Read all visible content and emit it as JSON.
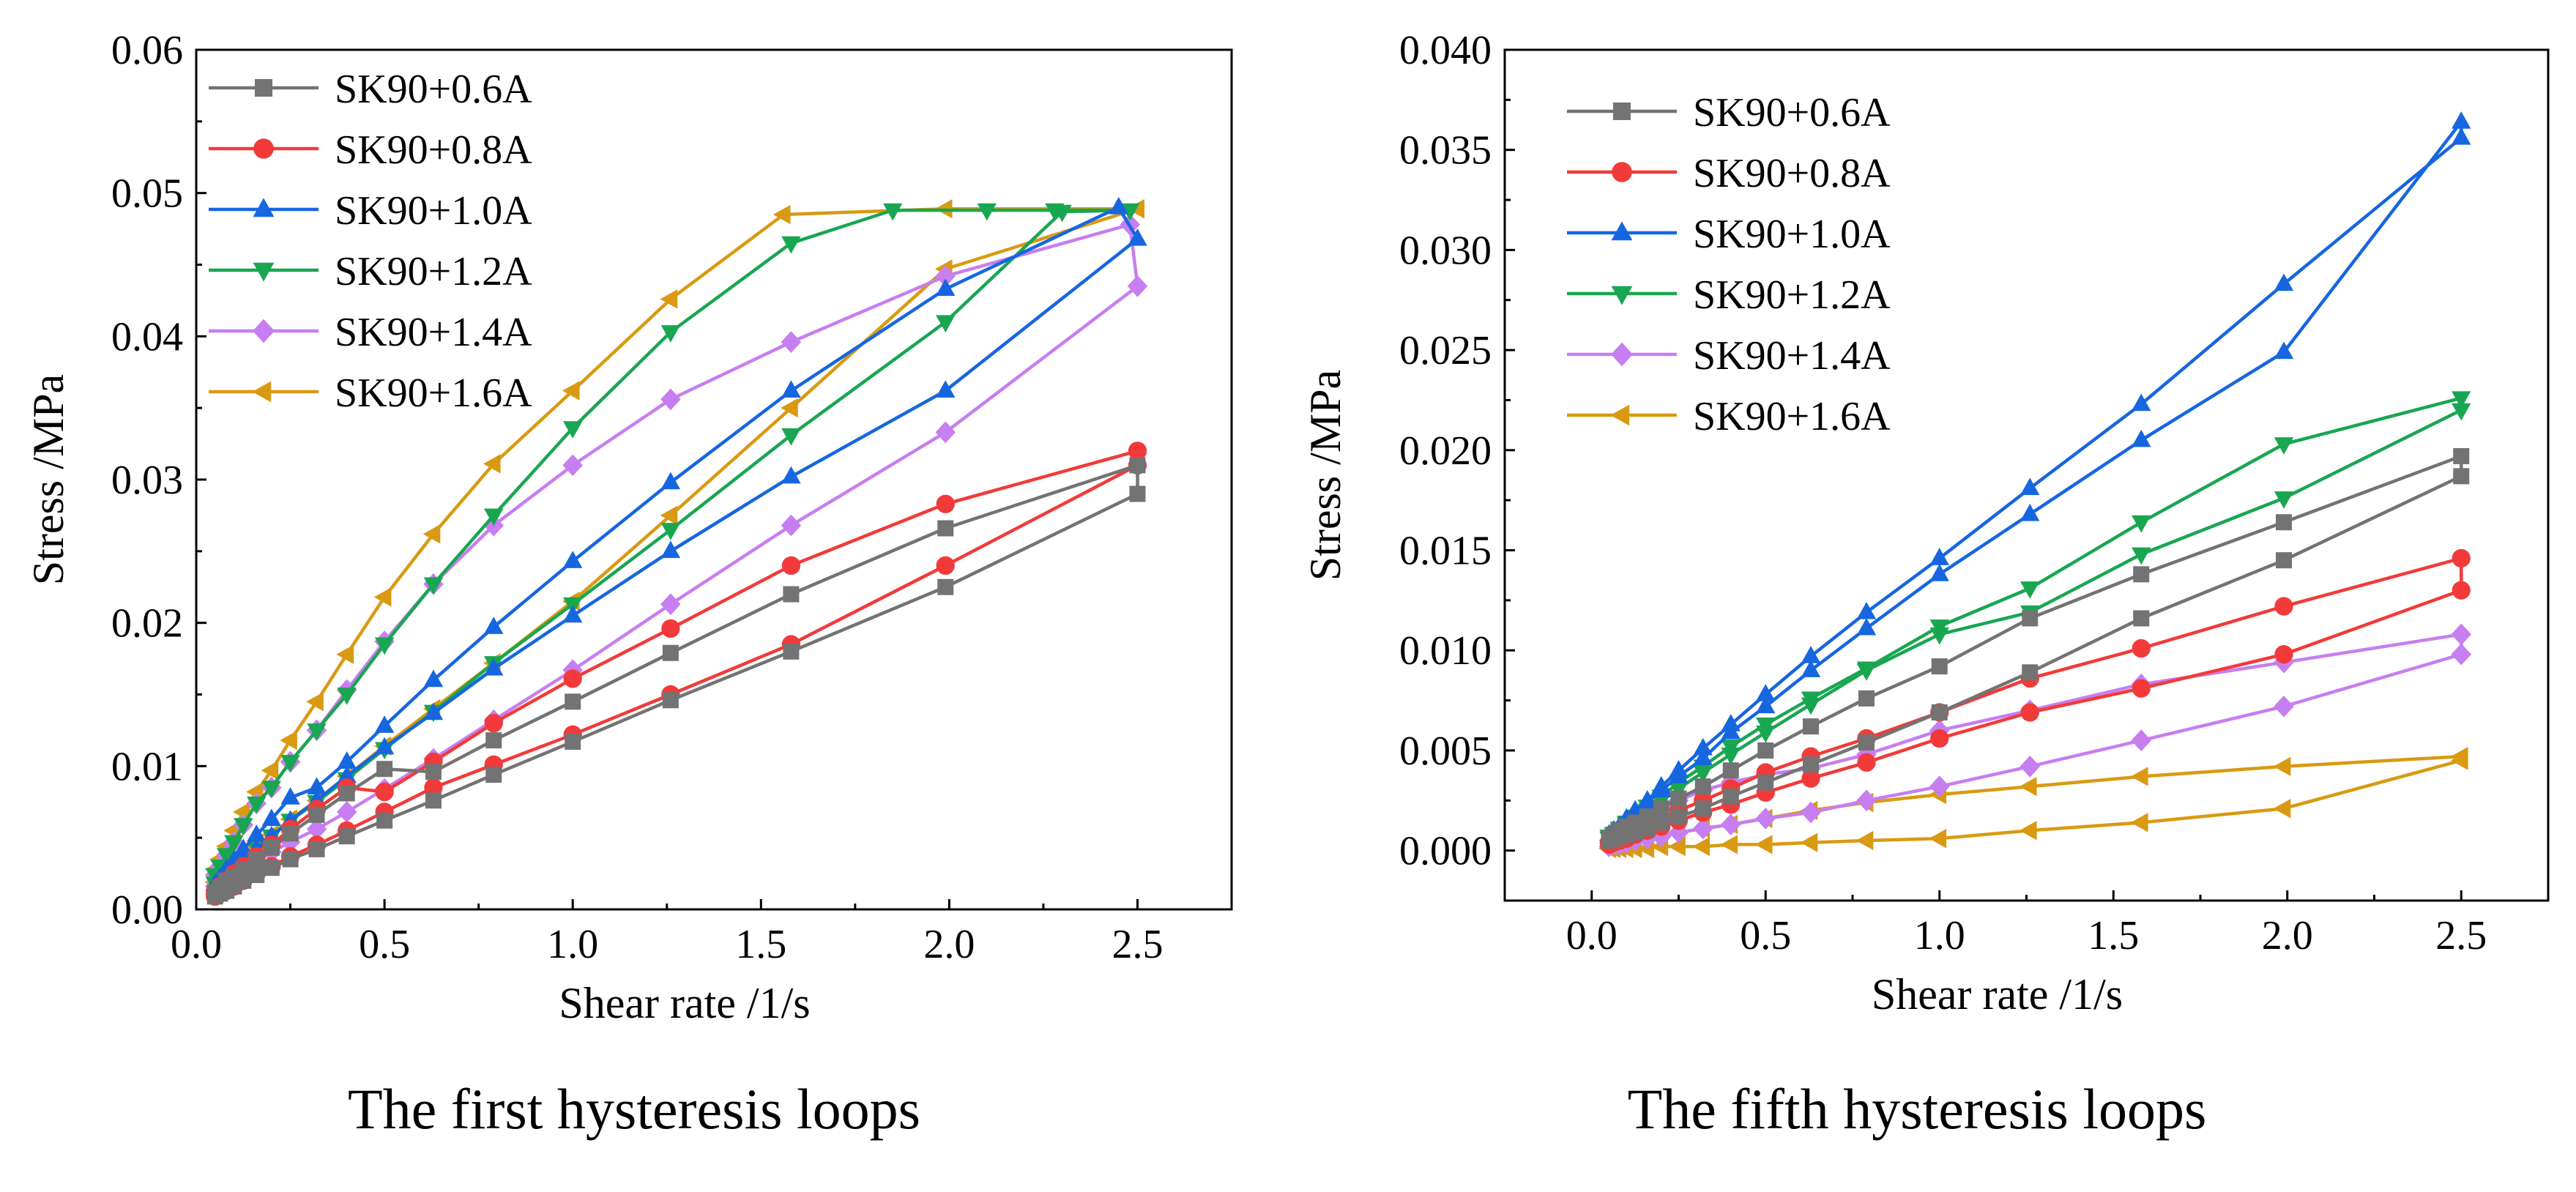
{
  "colors": {
    "SK90+0.6A": "#737373",
    "SK90+0.8A": "#f23a3a",
    "SK90+1.0A": "#1666e0",
    "SK90+1.2A": "#19a651",
    "SK90+1.4A": "#c77ef0",
    "SK90+1.6A": "#d99a12"
  },
  "chart_data": [
    {
      "type": "line",
      "title": "The first hysteresis loops",
      "xlabel": "Shear rate /1/s",
      "ylabel": "Stress /MPa",
      "xlim": [
        0.0,
        2.75
      ],
      "ylim": [
        0.0,
        0.06
      ],
      "xticks": [
        "0.0",
        "0.5",
        "1.0",
        "1.5",
        "2.0",
        "2.5"
      ],
      "yticks": [
        "0.00",
        "0.01",
        "0.02",
        "0.03",
        "0.04",
        "0.05",
        "0.06"
      ],
      "legend": "top-left",
      "series": [
        {
          "name": "SK90+0.6A",
          "marker": "square",
          "x": [
            0.05,
            0.063,
            0.08,
            0.1,
            0.125,
            0.16,
            0.2,
            0.25,
            0.32,
            0.4,
            0.5,
            0.63,
            0.79,
            1.0,
            1.26,
            1.58,
            1.99,
            2.5,
            2.5,
            1.99,
            1.58,
            1.26,
            1.0,
            0.79,
            0.63,
            0.5,
            0.4,
            0.32,
            0.25,
            0.2,
            0.16,
            0.125,
            0.1,
            0.08,
            0.063,
            0.05
          ],
          "y": [
            0.0012,
            0.0015,
            0.002,
            0.0023,
            0.0028,
            0.0035,
            0.0043,
            0.0053,
            0.0066,
            0.0081,
            0.0098,
            0.0096,
            0.0118,
            0.0145,
            0.0179,
            0.022,
            0.0266,
            0.031,
            0.029,
            0.0225,
            0.018,
            0.0146,
            0.0117,
            0.0094,
            0.0076,
            0.0062,
            0.0051,
            0.0042,
            0.0035,
            0.0029,
            0.0024,
            0.002,
            0.0016,
            0.0013,
            0.0011,
            0.0009
          ]
        },
        {
          "name": "SK90+0.8A",
          "marker": "circle",
          "x": [
            0.05,
            0.063,
            0.08,
            0.1,
            0.125,
            0.16,
            0.2,
            0.25,
            0.32,
            0.4,
            0.5,
            0.63,
            0.79,
            1.0,
            1.26,
            1.58,
            1.99,
            2.5,
            2.5,
            1.99,
            1.58,
            1.26,
            1.0,
            0.79,
            0.63,
            0.5,
            0.4,
            0.32,
            0.25,
            0.2,
            0.16,
            0.125,
            0.1,
            0.08,
            0.063,
            0.05
          ],
          "y": [
            0.0012,
            0.0016,
            0.002,
            0.0025,
            0.003,
            0.0037,
            0.0045,
            0.0056,
            0.007,
            0.0085,
            0.0082,
            0.0103,
            0.013,
            0.0161,
            0.0196,
            0.024,
            0.0283,
            0.032,
            0.031,
            0.024,
            0.0185,
            0.015,
            0.0122,
            0.0101,
            0.0085,
            0.0068,
            0.0055,
            0.0045,
            0.0037,
            0.003,
            0.0025,
            0.002,
            0.0016,
            0.0013,
            0.0011,
            0.0009
          ]
        },
        {
          "name": "SK90+1.0A",
          "marker": "triangle-up",
          "x": [
            0.05,
            0.063,
            0.08,
            0.1,
            0.125,
            0.16,
            0.2,
            0.25,
            0.32,
            0.4,
            0.5,
            0.63,
            0.79,
            1.0,
            1.26,
            1.58,
            1.99,
            2.45,
            2.5,
            1.99,
            1.58,
            1.26,
            1.0,
            0.79,
            0.63,
            0.5,
            0.4,
            0.32,
            0.25,
            0.2,
            0.16,
            0.125,
            0.1,
            0.08,
            0.063,
            0.05
          ],
          "y": [
            0.0018,
            0.0022,
            0.0028,
            0.0034,
            0.0042,
            0.0052,
            0.0063,
            0.0078,
            0.0085,
            0.0103,
            0.0128,
            0.016,
            0.0197,
            0.0243,
            0.0298,
            0.0362,
            0.0433,
            0.049,
            0.0468,
            0.0362,
            0.0302,
            0.025,
            0.0205,
            0.0168,
            0.0137,
            0.0113,
            0.0093,
            0.0076,
            0.0062,
            0.0051,
            0.0042,
            0.0034,
            0.0028,
            0.0023,
            0.0019,
            0.0015
          ]
        },
        {
          "name": "SK90+1.2A",
          "marker": "triangle-down",
          "x": [
            0.05,
            0.063,
            0.08,
            0.1,
            0.125,
            0.16,
            0.2,
            0.25,
            0.32,
            0.4,
            0.5,
            0.63,
            0.79,
            1.0,
            1.26,
            1.58,
            1.85,
            2.1,
            2.28,
            2.48,
            2.3,
            1.99,
            1.58,
            1.26,
            1.0,
            0.79,
            0.63,
            0.5,
            0.4,
            0.32,
            0.25,
            0.2,
            0.16,
            0.125,
            0.1,
            0.08,
            0.063,
            0.05
          ],
          "y": [
            0.0024,
            0.003,
            0.0038,
            0.0047,
            0.0059,
            0.0074,
            0.0085,
            0.0103,
            0.0125,
            0.015,
            0.0185,
            0.0227,
            0.0275,
            0.0336,
            0.0403,
            0.0465,
            0.0488,
            0.0488,
            0.0488,
            0.0488,
            0.0487,
            0.041,
            0.0331,
            0.0265,
            0.0213,
            0.0172,
            0.0138,
            0.0112,
            0.0091,
            0.0075,
            0.0062,
            0.0051,
            0.0043,
            0.0036,
            0.003,
            0.0025,
            0.0021,
            0.0018
          ]
        },
        {
          "name": "SK90+1.4A",
          "marker": "diamond",
          "x": [
            0.05,
            0.063,
            0.08,
            0.1,
            0.125,
            0.16,
            0.2,
            0.25,
            0.32,
            0.4,
            0.5,
            0.63,
            0.79,
            1.0,
            1.26,
            1.58,
            1.99,
            2.48,
            2.5,
            1.99,
            1.58,
            1.26,
            1.0,
            0.79,
            0.63,
            0.5,
            0.4,
            0.32,
            0.25,
            0.2,
            0.16,
            0.125,
            0.1,
            0.08,
            0.063,
            0.05
          ],
          "y": [
            0.0024,
            0.003,
            0.0038,
            0.0047,
            0.0059,
            0.0074,
            0.0085,
            0.0103,
            0.0125,
            0.0153,
            0.0187,
            0.0227,
            0.0268,
            0.031,
            0.0356,
            0.0396,
            0.0442,
            0.0478,
            0.0435,
            0.0333,
            0.0268,
            0.0213,
            0.0167,
            0.0132,
            0.0105,
            0.0084,
            0.0068,
            0.0056,
            0.0047,
            0.004,
            0.0034,
            0.0029,
            0.0025,
            0.0021,
            0.0018,
            0.0016
          ]
        },
        {
          "name": "SK90+1.6A",
          "marker": "triangle-left",
          "x": [
            0.05,
            0.063,
            0.08,
            0.1,
            0.125,
            0.16,
            0.2,
            0.25,
            0.32,
            0.4,
            0.5,
            0.63,
            0.79,
            1.0,
            1.26,
            1.56,
            1.99,
            2.5,
            2.5,
            1.99,
            1.58,
            1.26,
            1.0,
            0.79,
            0.63,
            0.5,
            0.4,
            0.32,
            0.25,
            0.2,
            0.16,
            0.125,
            0.1,
            0.08,
            0.063,
            0.05
          ],
          "y": [
            0.0028,
            0.0035,
            0.0044,
            0.0055,
            0.0068,
            0.0082,
            0.0097,
            0.0118,
            0.0145,
            0.0178,
            0.0218,
            0.0262,
            0.0311,
            0.0362,
            0.0426,
            0.0485,
            0.0489,
            0.0489,
            0.0489,
            0.0447,
            0.035,
            0.0275,
            0.0215,
            0.0172,
            0.014,
            0.0114,
            0.0093,
            0.0076,
            0.0063,
            0.0052,
            0.0044,
            0.0037,
            0.0031,
            0.0026,
            0.0022,
            0.0019
          ]
        }
      ]
    },
    {
      "type": "line",
      "title": "The fifth hysteresis loops",
      "xlabel": "Shear rate /1/s",
      "ylabel": "Stress /MPa",
      "xlim": [
        -0.25,
        2.75
      ],
      "ylim": [
        -0.0025,
        0.04
      ],
      "xticks": [
        "0.0",
        "0.5",
        "1.0",
        "1.5",
        "2.0",
        "2.5"
      ],
      "yticks": [
        "0.000",
        "0.005",
        "0.010",
        "0.015",
        "0.020",
        "0.025",
        "0.030",
        "0.035",
        "0.040"
      ],
      "legend": "top-left",
      "series": [
        {
          "name": "SK90+0.6A",
          "marker": "square",
          "x": [
            0.05,
            0.063,
            0.08,
            0.1,
            0.125,
            0.16,
            0.2,
            0.25,
            0.32,
            0.4,
            0.5,
            0.63,
            0.79,
            1.0,
            1.26,
            1.58,
            1.99,
            2.5,
            2.5,
            1.99,
            1.58,
            1.26,
            1.0,
            0.79,
            0.63,
            0.5,
            0.4,
            0.32,
            0.25,
            0.2,
            0.16,
            0.125,
            0.1,
            0.08,
            0.063,
            0.05
          ],
          "y": [
            0.0006,
            0.0008,
            0.001,
            0.0012,
            0.0014,
            0.0017,
            0.0021,
            0.0026,
            0.0032,
            0.004,
            0.005,
            0.0062,
            0.0076,
            0.0092,
            0.0116,
            0.0138,
            0.0164,
            0.0197,
            0.0187,
            0.0145,
            0.0116,
            0.0089,
            0.0069,
            0.0054,
            0.0043,
            0.0034,
            0.0027,
            0.0021,
            0.0017,
            0.0014,
            0.0011,
            0.0009,
            0.0008,
            0.0007,
            0.0006,
            0.0005
          ]
        },
        {
          "name": "SK90+0.8A",
          "marker": "circle",
          "x": [
            0.05,
            0.063,
            0.08,
            0.1,
            0.125,
            0.16,
            0.2,
            0.25,
            0.32,
            0.4,
            0.5,
            0.63,
            0.79,
            1.0,
            1.26,
            1.58,
            1.99,
            2.5,
            2.5,
            1.99,
            1.58,
            1.26,
            1.0,
            0.79,
            0.63,
            0.5,
            0.4,
            0.32,
            0.25,
            0.2,
            0.16,
            0.125,
            0.1,
            0.08,
            0.063,
            0.05
          ],
          "y": [
            0.0004,
            0.0005,
            0.0006,
            0.0008,
            0.001,
            0.0013,
            0.0016,
            0.002,
            0.0025,
            0.0031,
            0.0039,
            0.0047,
            0.0056,
            0.0069,
            0.0086,
            0.0101,
            0.0122,
            0.0146,
            0.013,
            0.0098,
            0.0081,
            0.0069,
            0.0056,
            0.0044,
            0.0036,
            0.0029,
            0.0023,
            0.0019,
            0.0015,
            0.0012,
            0.001,
            0.0008,
            0.0006,
            0.0005,
            0.0004,
            0.0003
          ]
        },
        {
          "name": "SK90+1.0A",
          "marker": "triangle-up",
          "x": [
            0.05,
            0.063,
            0.08,
            0.1,
            0.125,
            0.16,
            0.2,
            0.25,
            0.32,
            0.4,
            0.5,
            0.63,
            0.79,
            1.0,
            1.26,
            1.58,
            1.99,
            2.5,
            2.5,
            1.99,
            1.58,
            1.26,
            1.0,
            0.79,
            0.63,
            0.5,
            0.4,
            0.32,
            0.25,
            0.2,
            0.16,
            0.125,
            0.1,
            0.08,
            0.063,
            0.05
          ],
          "y": [
            0.0007,
            0.0009,
            0.0012,
            0.0015,
            0.0019,
            0.0024,
            0.003,
            0.0037,
            0.0046,
            0.0059,
            0.0072,
            0.009,
            0.0111,
            0.0138,
            0.0168,
            0.0205,
            0.0249,
            0.0364,
            0.0356,
            0.0283,
            0.0223,
            0.0181,
            0.0146,
            0.0119,
            0.0097,
            0.0078,
            0.0063,
            0.0051,
            0.004,
            0.0032,
            0.0025,
            0.002,
            0.0016,
            0.0012,
            0.001,
            0.0008
          ]
        },
        {
          "name": "SK90+1.2A",
          "marker": "triangle-down",
          "x": [
            0.05,
            0.063,
            0.08,
            0.1,
            0.125,
            0.16,
            0.2,
            0.25,
            0.32,
            0.4,
            0.5,
            0.63,
            0.79,
            1.0,
            1.26,
            1.58,
            1.99,
            2.5,
            2.5,
            1.99,
            1.58,
            1.26,
            1.0,
            0.79,
            0.63,
            0.5,
            0.4,
            0.32,
            0.25,
            0.2,
            0.16,
            0.125,
            0.1,
            0.08,
            0.063,
            0.05
          ],
          "y": [
            0.0006,
            0.0008,
            0.0011,
            0.0014,
            0.0017,
            0.0022,
            0.0027,
            0.0034,
            0.0042,
            0.0052,
            0.0063,
            0.0076,
            0.0091,
            0.0112,
            0.0131,
            0.0164,
            0.0203,
            0.0226,
            0.022,
            0.0176,
            0.0148,
            0.0119,
            0.0108,
            0.009,
            0.0073,
            0.0059,
            0.0048,
            0.0039,
            0.0031,
            0.0025,
            0.002,
            0.0016,
            0.0013,
            0.001,
            0.0008,
            0.0007
          ]
        },
        {
          "name": "SK90+1.4A",
          "marker": "diamond",
          "x": [
            0.05,
            0.063,
            0.08,
            0.1,
            0.125,
            0.16,
            0.2,
            0.25,
            0.32,
            0.4,
            0.5,
            0.63,
            0.79,
            1.0,
            1.26,
            1.58,
            1.99,
            2.5,
            2.5,
            1.99,
            1.58,
            1.26,
            1.0,
            0.79,
            0.63,
            0.5,
            0.4,
            0.32,
            0.25,
            0.2,
            0.16,
            0.125,
            0.1,
            0.08,
            0.063,
            0.05
          ],
          "y": [
            0.0005,
            0.0007,
            0.0009,
            0.0011,
            0.0014,
            0.0017,
            0.0021,
            0.0025,
            0.003,
            0.0034,
            0.0038,
            0.0041,
            0.0048,
            0.006,
            0.007,
            0.0083,
            0.0094,
            0.0108,
            0.0098,
            0.0072,
            0.0055,
            0.0042,
            0.0032,
            0.0025,
            0.0019,
            0.0016,
            0.0013,
            0.0011,
            0.0009,
            0.0007,
            0.0006,
            0.0005,
            0.0004,
            0.0003,
            0.0003,
            0.0002
          ]
        },
        {
          "name": "SK90+1.6A",
          "marker": "triangle-left",
          "x": [
            0.05,
            0.063,
            0.08,
            0.1,
            0.125,
            0.16,
            0.2,
            0.25,
            0.32,
            0.4,
            0.5,
            0.63,
            0.79,
            1.0,
            1.26,
            1.58,
            1.99,
            2.5,
            2.5,
            1.99,
            1.58,
            1.26,
            1.0,
            0.79,
            0.63,
            0.5,
            0.4,
            0.32,
            0.25,
            0.2,
            0.16,
            0.125,
            0.1,
            0.08,
            0.063,
            0.05
          ],
          "y": [
            0.0002,
            0.0002,
            0.0003,
            0.0004,
            0.0005,
            0.0006,
            0.0007,
            0.0009,
            0.0011,
            0.0013,
            0.0016,
            0.002,
            0.0024,
            0.0028,
            0.0032,
            0.0037,
            0.0042,
            0.0047,
            0.0045,
            0.0021,
            0.0014,
            0.001,
            0.0006,
            0.0005,
            0.0004,
            0.0003,
            0.0003,
            0.0002,
            0.0002,
            0.0002,
            0.0001,
            0.0001,
            0.0001,
            0.0001,
            0.0001,
            0.0001
          ]
        }
      ]
    }
  ]
}
